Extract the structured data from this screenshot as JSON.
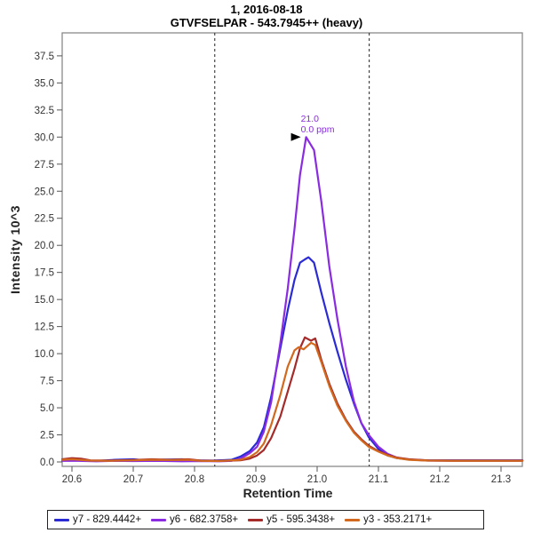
{
  "window": {
    "title_line1": "1, 2016-08-18",
    "title_line2": "GTVFSELPAR - 543.7945++ (heavy)"
  },
  "chart_data": {
    "type": "line",
    "title": "1, 2016-08-18",
    "subtitle": "GTVFSELPAR - 543.7945++ (heavy)",
    "xlabel": "Retention Time",
    "ylabel": "Intensity 10^3",
    "xlim": [
      20.584,
      21.335
    ],
    "ylim": [
      0,
      39.6
    ],
    "grid": false,
    "legend_position": "bottom",
    "x_tick_labels": [
      "20.6",
      "20.7",
      "20.8",
      "20.9",
      "21.0",
      "21.1",
      "21.2",
      "21.3"
    ],
    "x_ticks": [
      20.6,
      20.7,
      20.8,
      20.9,
      21.0,
      21.1,
      21.2,
      21.3
    ],
    "y_tick_labels": [
      "0.0",
      "2.5",
      "5.0",
      "7.5",
      "10.0",
      "12.5",
      "15.0",
      "17.5",
      "20.0",
      "22.5",
      "25.0",
      "27.5",
      "30.0",
      "32.5",
      "35.0",
      "37.5"
    ],
    "y_ticks": [
      0,
      2.5,
      5,
      7.5,
      10,
      12.5,
      15,
      17.5,
      20,
      22.5,
      25,
      27.5,
      30,
      32.5,
      35,
      37.5
    ],
    "integration_boundaries": [
      20.833,
      21.085
    ],
    "annotation": {
      "rt_label": "21.0",
      "ppm_label": "0.0 ppm",
      "color": "#8a2be2",
      "x": 20.982,
      "y": 30.0
    },
    "series": [
      {
        "name": "y7",
        "label": "y7 - 829.4442+",
        "color": "#2b2bd5",
        "points": [
          [
            20.584,
            0.15
          ],
          [
            20.61,
            0.15
          ],
          [
            20.64,
            0.1
          ],
          [
            20.67,
            0.2
          ],
          [
            20.7,
            0.25
          ],
          [
            20.72,
            0.15
          ],
          [
            20.75,
            0.22
          ],
          [
            20.78,
            0.25
          ],
          [
            20.8,
            0.15
          ],
          [
            20.83,
            0.12
          ],
          [
            20.86,
            0.2
          ],
          [
            20.875,
            0.5
          ],
          [
            20.89,
            1.0
          ],
          [
            20.902,
            1.8
          ],
          [
            20.913,
            3.2
          ],
          [
            20.925,
            6.0
          ],
          [
            20.94,
            10.5
          ],
          [
            20.952,
            14.0
          ],
          [
            20.963,
            16.8
          ],
          [
            20.972,
            18.4
          ],
          [
            20.98,
            18.7
          ],
          [
            20.986,
            18.9
          ],
          [
            20.995,
            18.4
          ],
          [
            21.007,
            15.6
          ],
          [
            21.02,
            12.8
          ],
          [
            21.033,
            10.2
          ],
          [
            21.047,
            7.6
          ],
          [
            21.06,
            5.4
          ],
          [
            21.072,
            3.6
          ],
          [
            21.084,
            2.3
          ],
          [
            21.1,
            1.2
          ],
          [
            21.115,
            0.6
          ],
          [
            21.13,
            0.35
          ],
          [
            21.15,
            0.22
          ],
          [
            21.18,
            0.15
          ],
          [
            21.22,
            0.15
          ],
          [
            21.27,
            0.15
          ],
          [
            21.335,
            0.15
          ]
        ]
      },
      {
        "name": "y6",
        "label": "y6 - 682.3758+",
        "color": "#8a2be2",
        "points": [
          [
            20.584,
            0.1
          ],
          [
            20.61,
            0.1
          ],
          [
            20.64,
            0.06
          ],
          [
            20.67,
            0.1
          ],
          [
            20.7,
            0.08
          ],
          [
            20.74,
            0.1
          ],
          [
            20.78,
            0.06
          ],
          [
            20.81,
            0.08
          ],
          [
            20.84,
            0.06
          ],
          [
            20.86,
            0.1
          ],
          [
            20.875,
            0.3
          ],
          [
            20.89,
            0.8
          ],
          [
            20.902,
            1.4
          ],
          [
            20.913,
            2.8
          ],
          [
            20.925,
            5.5
          ],
          [
            20.94,
            11.0
          ],
          [
            20.952,
            16.0
          ],
          [
            20.963,
            21.5
          ],
          [
            20.972,
            26.5
          ],
          [
            20.982,
            30.0
          ],
          [
            20.995,
            28.8
          ],
          [
            21.007,
            24.0
          ],
          [
            21.02,
            18.0
          ],
          [
            21.033,
            13.2
          ],
          [
            21.047,
            8.8
          ],
          [
            21.06,
            5.6
          ],
          [
            21.072,
            3.6
          ],
          [
            21.084,
            2.5
          ],
          [
            21.1,
            1.4
          ],
          [
            21.115,
            0.75
          ],
          [
            21.13,
            0.4
          ],
          [
            21.15,
            0.22
          ],
          [
            21.18,
            0.12
          ],
          [
            21.22,
            0.1
          ],
          [
            21.27,
            0.1
          ],
          [
            21.335,
            0.1
          ]
        ]
      },
      {
        "name": "y5",
        "label": "y5 - 595.3438+",
        "color": "#a52a2a",
        "points": [
          [
            20.584,
            0.25
          ],
          [
            20.6,
            0.35
          ],
          [
            20.615,
            0.3
          ],
          [
            20.63,
            0.15
          ],
          [
            20.66,
            0.12
          ],
          [
            20.7,
            0.18
          ],
          [
            20.73,
            0.25
          ],
          [
            20.76,
            0.2
          ],
          [
            20.79,
            0.25
          ],
          [
            20.81,
            0.12
          ],
          [
            20.84,
            0.1
          ],
          [
            20.875,
            0.15
          ],
          [
            20.89,
            0.3
          ],
          [
            20.902,
            0.6
          ],
          [
            20.913,
            1.1
          ],
          [
            20.925,
            2.2
          ],
          [
            20.94,
            4.2
          ],
          [
            20.952,
            6.5
          ],
          [
            20.963,
            8.6
          ],
          [
            20.972,
            10.5
          ],
          [
            20.98,
            11.5
          ],
          [
            20.99,
            11.2
          ],
          [
            20.997,
            11.4
          ],
          [
            21.007,
            9.4
          ],
          [
            21.02,
            7.2
          ],
          [
            21.033,
            5.4
          ],
          [
            21.047,
            3.9
          ],
          [
            21.06,
            2.8
          ],
          [
            21.072,
            2.1
          ],
          [
            21.084,
            1.5
          ],
          [
            21.1,
            1.0
          ],
          [
            21.115,
            0.65
          ],
          [
            21.13,
            0.4
          ],
          [
            21.15,
            0.25
          ],
          [
            21.18,
            0.15
          ],
          [
            21.22,
            0.12
          ],
          [
            21.27,
            0.12
          ],
          [
            21.335,
            0.12
          ]
        ]
      },
      {
        "name": "y3",
        "label": "y3 - 353.2171+",
        "color": "#d2691e",
        "points": [
          [
            20.584,
            0.2
          ],
          [
            20.6,
            0.25
          ],
          [
            20.63,
            0.12
          ],
          [
            20.66,
            0.1
          ],
          [
            20.7,
            0.15
          ],
          [
            20.73,
            0.2
          ],
          [
            20.76,
            0.18
          ],
          [
            20.79,
            0.2
          ],
          [
            20.81,
            0.1
          ],
          [
            20.84,
            0.08
          ],
          [
            20.875,
            0.2
          ],
          [
            20.89,
            0.45
          ],
          [
            20.902,
            0.9
          ],
          [
            20.913,
            1.7
          ],
          [
            20.925,
            3.4
          ],
          [
            20.94,
            6.2
          ],
          [
            20.952,
            8.8
          ],
          [
            20.963,
            10.3
          ],
          [
            20.97,
            10.6
          ],
          [
            20.978,
            10.4
          ],
          [
            20.99,
            11.0
          ],
          [
            20.997,
            10.8
          ],
          [
            21.007,
            9.2
          ],
          [
            21.02,
            7.0
          ],
          [
            21.033,
            5.2
          ],
          [
            21.047,
            3.8
          ],
          [
            21.06,
            2.7
          ],
          [
            21.072,
            2.0
          ],
          [
            21.084,
            1.4
          ],
          [
            21.1,
            0.95
          ],
          [
            21.115,
            0.6
          ],
          [
            21.13,
            0.35
          ],
          [
            21.15,
            0.2
          ],
          [
            21.18,
            0.12
          ],
          [
            21.22,
            0.1
          ],
          [
            21.27,
            0.1
          ],
          [
            21.335,
            0.1
          ]
        ]
      }
    ]
  }
}
